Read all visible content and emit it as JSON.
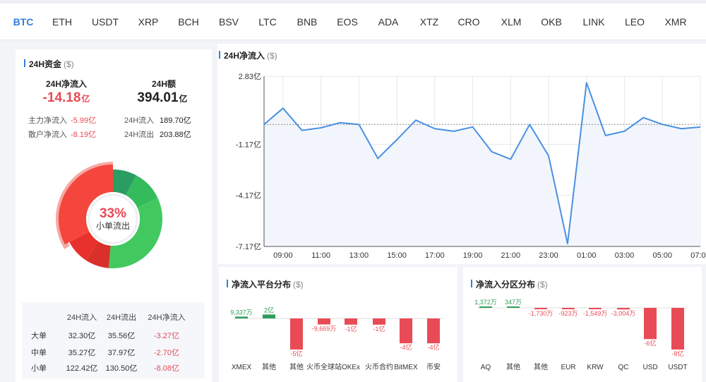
{
  "tabs": [
    "BTC",
    "ETH",
    "USDT",
    "XRP",
    "BCH",
    "BSV",
    "LTC",
    "BNB",
    "EOS",
    "ADA",
    "XTZ",
    "CRO",
    "XLM",
    "OKB",
    "LINK",
    "LEO",
    "XMR"
  ],
  "active_tab": 0,
  "fund": {
    "title": "24H资金",
    "unit": "($)",
    "net_inflow_label": "24H净流入",
    "net_inflow_value": "-14.18",
    "net_inflow_unit": "亿",
    "volume_label": "24H额",
    "volume_value": "394.01",
    "volume_unit": "亿",
    "main_net_label": "主力净流入",
    "main_net_value": "-5.99亿",
    "retail_net_label": "散户净流入",
    "retail_net_value": "-8.19亿",
    "inflow_label": "24H流入",
    "inflow_value": "189.70亿",
    "outflow_label": "24H流出",
    "outflow_value": "203.88亿"
  },
  "donut": {
    "center_percent": "33%",
    "center_label": "小单流出",
    "colors": {
      "red1": "#f4463c",
      "red2": "#e8312d",
      "red3": "#d9302a",
      "green1": "#2a9d62",
      "green2": "#34bb5c",
      "green3": "#41c960"
    }
  },
  "order_table": {
    "headers": [
      "",
      "24H流入",
      "24H流出",
      "24H净流入"
    ],
    "rows": [
      [
        "大单",
        "32.30亿",
        "35.56亿",
        "-3.27亿"
      ],
      [
        "中单",
        "35.27亿",
        "37.97亿",
        "-2.70亿"
      ],
      [
        "小单",
        "122.42亿",
        "130.50亿",
        "-8.08亿"
      ]
    ]
  },
  "chart_data": [
    {
      "type": "line",
      "title": "24H净流入",
      "unit": "($)",
      "y_ticks": [
        "2.83亿",
        "-1.17亿",
        "-4.17亿",
        "-7.17亿"
      ],
      "y_tick_values": [
        2.83,
        -1.17,
        -4.17,
        -7.17
      ],
      "ylim": [
        -7.17,
        2.83
      ],
      "x_ticks": [
        "09:00",
        "11:00",
        "13:00",
        "15:00",
        "17:00",
        "19:00",
        "21:00",
        "23:00",
        "01:00",
        "03:00",
        "05:00",
        "07:00"
      ],
      "x_tick_index": [
        1,
        3,
        5,
        7,
        9,
        11,
        13,
        15,
        17,
        19,
        21,
        23
      ],
      "baseline": 0,
      "values": [
        0,
        0.95,
        -0.35,
        -0.2,
        0.1,
        0,
        -2.0,
        -0.9,
        0.25,
        -0.25,
        -0.4,
        -0.15,
        -1.6,
        -2.05,
        0,
        -1.85,
        -7.0,
        2.45,
        -0.65,
        -0.4,
        0.4,
        0,
        -0.25,
        -0.15
      ],
      "line_color": "#4a90e2",
      "area_color": "#f2f6fc"
    },
    {
      "type": "bar",
      "title": "净流入平台分布",
      "unit": "($)",
      "categories": [
        "XMEX",
        "其他",
        "其他",
        "火币全球站",
        "OKEx",
        "火币合约",
        "BitMEX",
        "币安"
      ],
      "values": [
        0.9337,
        2,
        -5,
        -0.9669,
        -1,
        -1,
        -4,
        -4
      ],
      "labels": [
        "9,337万",
        "2亿",
        "-5亿",
        "-9,669万",
        "-1亿",
        "-1亿",
        "-4亿",
        "-4亿"
      ],
      "colors": {
        "positive": "#2f9e5a",
        "negative": "#e84b55"
      }
    },
    {
      "type": "bar",
      "title": "净流入分区分布",
      "unit": "($)",
      "categories": [
        "AQ",
        "其他",
        "其他",
        "EUR",
        "KRW",
        "QC",
        "USD",
        "USDT"
      ],
      "values": [
        0.1372,
        0.0347,
        -0.173,
        -0.0923,
        -0.1549,
        -0.3004,
        -6,
        -8
      ],
      "labels": [
        "1,372万",
        "347万",
        "-1,730万",
        "-923万",
        "-1,549万",
        "-3,004万",
        "-6亿",
        "-8亿"
      ],
      "colors": {
        "positive": "#2f9e5a",
        "negative": "#e84b55"
      }
    }
  ]
}
